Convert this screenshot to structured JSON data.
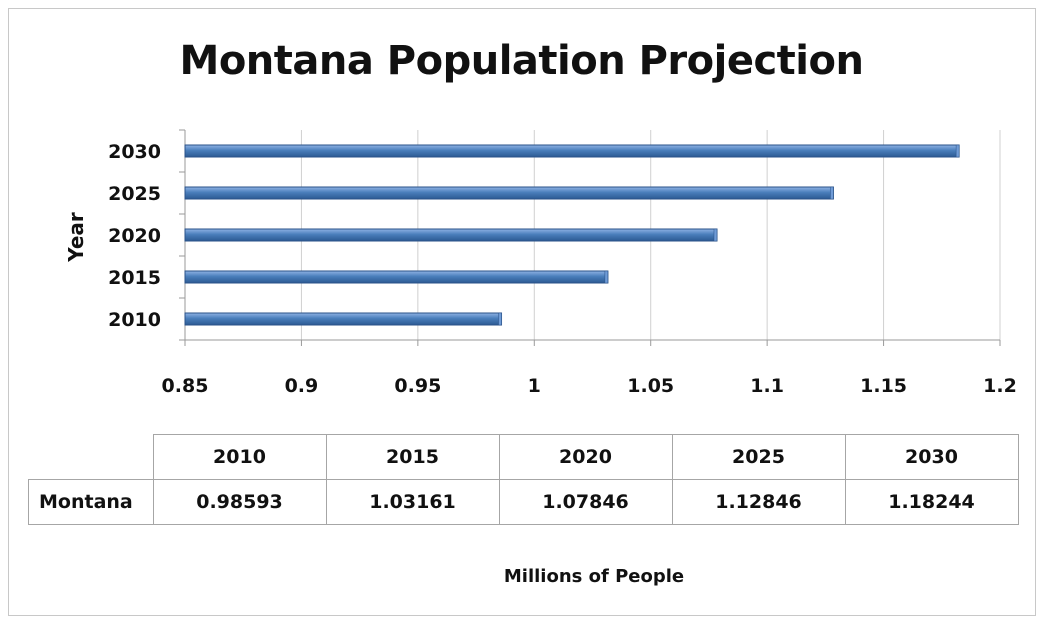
{
  "chart_data": {
    "type": "bar",
    "orientation": "horizontal",
    "title": "Montana Population Projection",
    "xlabel": "Millions of People",
    "ylabel": "Year",
    "categories": [
      "2010",
      "2015",
      "2020",
      "2025",
      "2030"
    ],
    "series": [
      {
        "name": "Montana",
        "values": [
          0.98593,
          1.03161,
          1.07846,
          1.12846,
          1.18244
        ]
      }
    ],
    "xlim": [
      0.85,
      1.2
    ],
    "xticks": [
      "0.85",
      "0.9",
      "0.95",
      "1",
      "1.05",
      "1.1",
      "1.15",
      "1.2"
    ],
    "grid": "vertical",
    "bar_color": "#4a7ebb",
    "data_table": {
      "columns": [
        "2010",
        "2015",
        "2020",
        "2025",
        "2030"
      ],
      "row_label": "Montana",
      "values": [
        "0.98593",
        "1.03161",
        "1.07846",
        "1.12846",
        "1.18244"
      ]
    }
  }
}
